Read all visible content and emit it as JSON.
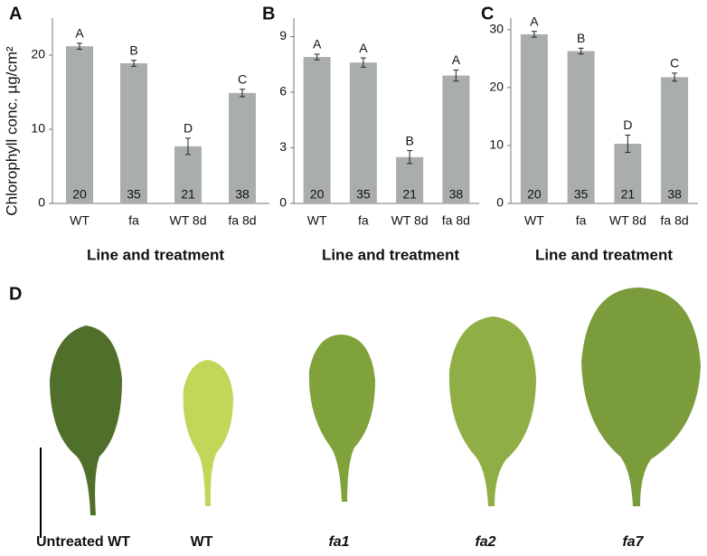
{
  "chart_data": [
    {
      "type": "bar",
      "panel_label": "A",
      "y_label": "Chlorophyll conc. µg/cm²",
      "x_label": "Line and treatment",
      "categories": [
        "WT",
        "fa",
        "WT 8d",
        "fa 8d"
      ],
      "values": [
        21.2,
        18.9,
        7.7,
        14.9
      ],
      "errors": [
        0.4,
        0.4,
        1.1,
        0.5
      ],
      "letters": [
        "A",
        "B",
        "D",
        "C"
      ],
      "n": [
        "20",
        "35",
        "21",
        "38"
      ],
      "color": "#aaaeab",
      "ylim": [
        0,
        25
      ],
      "yticks": [
        0,
        10,
        20
      ]
    },
    {
      "type": "bar",
      "panel_label": "B",
      "x_label": "Line and treatment",
      "categories": [
        "WT",
        "fa",
        "WT 8d",
        "fa 8d"
      ],
      "values": [
        7.9,
        7.6,
        2.5,
        6.9
      ],
      "errors": [
        0.15,
        0.25,
        0.35,
        0.3
      ],
      "letters": [
        "A",
        "A",
        "B",
        "A"
      ],
      "n": [
        "20",
        "35",
        "21",
        "38"
      ],
      "color": "#aaaeab",
      "ylim": [
        0,
        10
      ],
      "yticks": [
        0,
        3,
        6,
        9
      ]
    },
    {
      "type": "bar",
      "panel_label": "C",
      "x_label": "Line and treatment",
      "categories": [
        "WT",
        "fa",
        "WT 8d",
        "fa 8d"
      ],
      "values": [
        29.2,
        26.3,
        10.3,
        21.8
      ],
      "errors": [
        0.5,
        0.5,
        1.5,
        0.7
      ],
      "letters": [
        "A",
        "B",
        "D",
        "C"
      ],
      "n": [
        "20",
        "35",
        "21",
        "38"
      ],
      "color": "#aaaeab",
      "ylim": [
        0,
        32
      ],
      "yticks": [
        0,
        10,
        20,
        30
      ]
    }
  ],
  "panel_d": {
    "panel_label": "D",
    "labels": [
      "Untreated WT",
      "WT",
      "fa1",
      "fa2",
      "fa7"
    ]
  }
}
